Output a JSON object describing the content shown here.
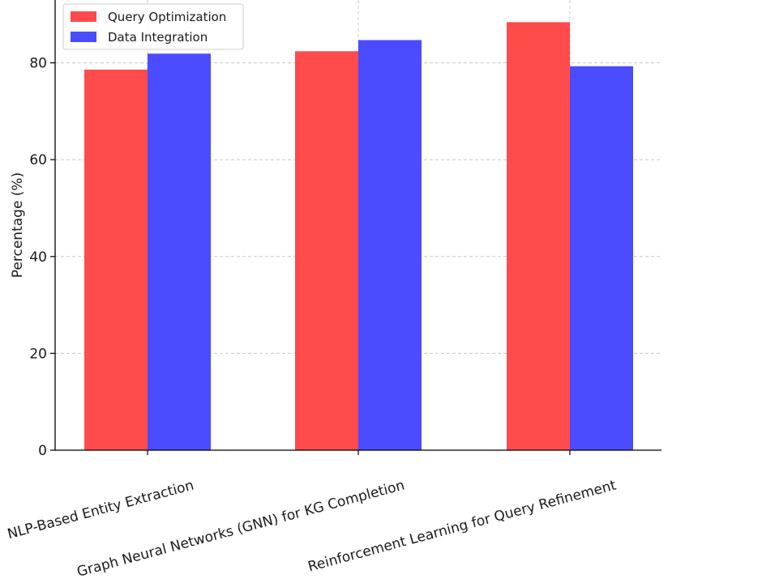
{
  "chart_data": {
    "type": "bar",
    "title": "",
    "xlabel": "",
    "ylabel": "Percentage (%)",
    "categories": [
      "NLP-Based Entity Extraction",
      "Graph Neural Networks (GNN) for KG Completion",
      "Reinforcement Learning for Query Refinement"
    ],
    "series": [
      {
        "name": "Query Optimization",
        "color": "#ff4b4b",
        "values": [
          78.6,
          82.4,
          88.4
        ]
      },
      {
        "name": "Data Integration",
        "color": "#4b4bff",
        "values": [
          81.9,
          84.7,
          79.3
        ]
      }
    ],
    "ylim": [
      0,
      92
    ],
    "yticks": [
      0,
      20,
      40,
      60,
      80
    ],
    "grid": true,
    "legend_position": "top-left"
  }
}
